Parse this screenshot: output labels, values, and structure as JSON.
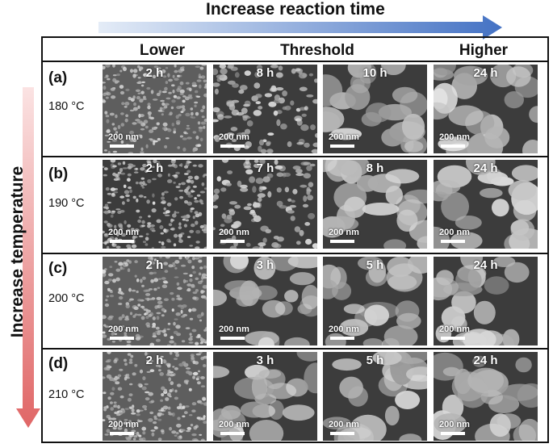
{
  "header": {
    "reaction_time_label": "Increase reaction time"
  },
  "side": {
    "temperature_label": "Increase temperature"
  },
  "columns": [
    "Lower",
    "Threshold",
    "Higher"
  ],
  "scale_bar": "200 nm",
  "rows": [
    {
      "label": "(a)",
      "temperature": "180 °C",
      "times": [
        "2 h",
        "8 h",
        "10 h",
        "24 h"
      ]
    },
    {
      "label": "(b)",
      "temperature": "190 °C",
      "times": [
        "2 h",
        "7 h",
        "8 h",
        "24 h"
      ]
    },
    {
      "label": "(c)",
      "temperature": "200 °C",
      "times": [
        "2 h",
        "3 h",
        "5 h",
        "24 h"
      ]
    },
    {
      "label": "(d)",
      "temperature": "210 °C",
      "times": [
        "2 h",
        "3 h",
        "5 h",
        "24 h"
      ]
    }
  ],
  "colors": {
    "time_arrow_start": "#e4ecf7",
    "time_arrow_end": "#4472c4",
    "temperature_arrow_start": "#fbe3e3",
    "temperature_arrow_end": "#e06666",
    "frame": "#111111"
  }
}
